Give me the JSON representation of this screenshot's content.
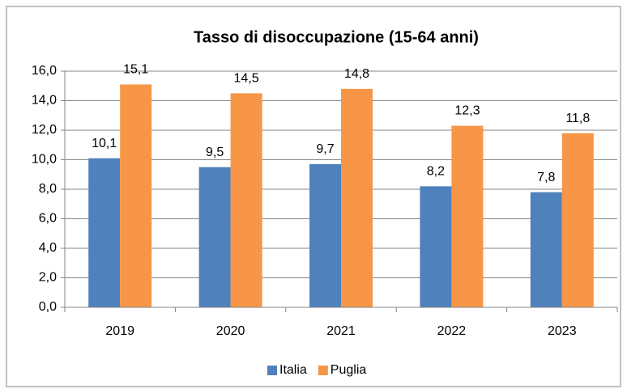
{
  "chart_data": {
    "type": "bar",
    "title": "Tasso di disoccupazione  (15-64 anni)",
    "categories": [
      "2019",
      "2020",
      "2021",
      "2022",
      "2023"
    ],
    "series": [
      {
        "name": "Italia",
        "color": "#4f81bd",
        "values": [
          10.1,
          9.5,
          9.7,
          8.2,
          7.8
        ],
        "value_labels": [
          "10,1",
          "9,5",
          "9,7",
          "8,2",
          "7,8"
        ]
      },
      {
        "name": "Puglia",
        "color": "#f79646",
        "values": [
          15.1,
          14.5,
          14.8,
          12.3,
          11.8
        ],
        "value_labels": [
          "15,1",
          "14,5",
          "14,8",
          "12,3",
          "11,8"
        ]
      }
    ],
    "ylim": [
      0,
      16
    ],
    "yticks": [
      {
        "value": 0,
        "label": "0,0"
      },
      {
        "value": 2,
        "label": "2,0"
      },
      {
        "value": 4,
        "label": "4,0"
      },
      {
        "value": 6,
        "label": "6,0"
      },
      {
        "value": 8,
        "label": "8,0"
      },
      {
        "value": 10,
        "label": "10,0"
      },
      {
        "value": 12,
        "label": "12,0"
      },
      {
        "value": 14,
        "label": "14,0"
      },
      {
        "value": 16,
        "label": "16,0"
      }
    ],
    "grid": true,
    "legend": "bottom"
  }
}
